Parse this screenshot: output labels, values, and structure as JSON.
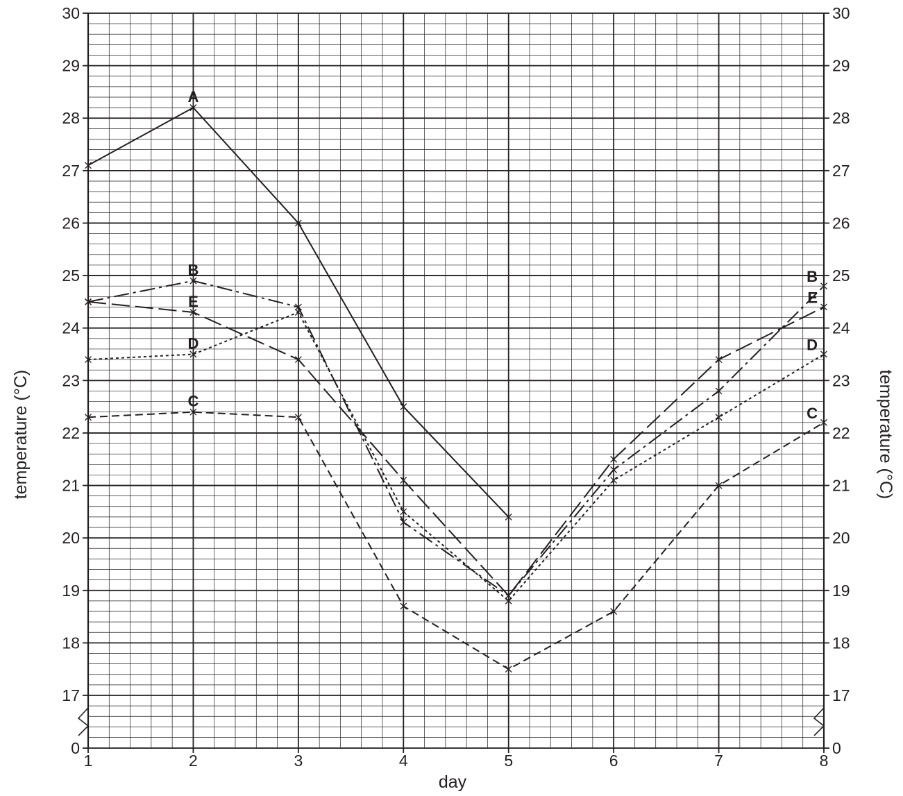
{
  "chart_data": {
    "type": "line",
    "title": "",
    "xlabel": "day",
    "ylabel_left": "temperature (°C)",
    "ylabel_right": "temperature (°C)",
    "x": [
      1,
      2,
      3,
      4,
      5,
      6,
      7,
      8
    ],
    "x_tick_labels": [
      "1",
      "2",
      "3",
      "4",
      "5",
      "6",
      "7",
      "8"
    ],
    "xlim": [
      1,
      8
    ],
    "ylim": [
      17,
      30
    ],
    "y_axis_break": true,
    "y_tick_labels": [
      "0",
      "17",
      "18",
      "19",
      "20",
      "21",
      "22",
      "23",
      "24",
      "25",
      "26",
      "27",
      "28",
      "29",
      "30"
    ],
    "grid": "fine graph paper, 0.2 °C and 0.2 day minor squares",
    "series": [
      {
        "name": "A",
        "style": "solid",
        "x": [
          1,
          2,
          3,
          4,
          5
        ],
        "values": [
          27.1,
          28.2,
          26.0,
          22.5,
          20.4
        ]
      },
      {
        "name": "B",
        "style": "dash-dot",
        "x": [
          1,
          2,
          3,
          4,
          5,
          6,
          7,
          8
        ],
        "values": [
          24.5,
          24.9,
          24.4,
          20.3,
          18.9,
          21.3,
          22.8,
          24.8
        ]
      },
      {
        "name": "C",
        "style": "dashed",
        "x": [
          1,
          2,
          3,
          4,
          5,
          6,
          7,
          8
        ],
        "values": [
          22.3,
          22.4,
          22.3,
          18.7,
          17.5,
          18.6,
          21.0,
          22.2
        ]
      },
      {
        "name": "D",
        "style": "dotted",
        "x": [
          1,
          2,
          3,
          4,
          5,
          6,
          7,
          8
        ],
        "values": [
          23.4,
          23.5,
          24.3,
          20.5,
          18.8,
          21.1,
          22.3,
          23.5
        ]
      },
      {
        "name": "E",
        "style": "long-dash",
        "x": [
          1,
          2,
          3,
          4,
          5,
          6,
          7,
          8
        ],
        "values": [
          24.5,
          24.3,
          23.4,
          21.1,
          18.9,
          21.5,
          23.4,
          24.4
        ]
      }
    ],
    "series_labels": {
      "start": [
        "A",
        "B",
        "E",
        "D",
        "C"
      ],
      "end": [
        "B",
        "E",
        "D",
        "C"
      ]
    }
  }
}
